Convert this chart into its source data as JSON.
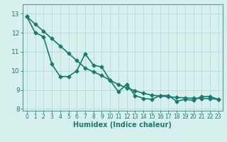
{
  "line1_x": [
    0,
    1,
    2,
    3,
    4,
    5,
    6,
    7,
    8,
    9,
    10,
    11,
    12,
    13,
    14,
    15,
    16,
    17,
    18,
    19,
    20,
    21,
    22,
    23
  ],
  "line1_y": [
    12.85,
    12.0,
    11.8,
    10.35,
    9.7,
    9.7,
    10.0,
    10.9,
    10.3,
    10.2,
    9.5,
    8.9,
    9.3,
    8.7,
    8.55,
    8.5,
    8.7,
    8.7,
    8.4,
    8.5,
    8.45,
    8.65,
    8.65,
    8.5
  ],
  "line2_x": [
    0,
    1,
    2,
    3,
    4,
    5,
    6,
    7,
    8,
    9,
    10,
    11,
    12,
    13,
    14,
    15,
    16,
    17,
    18,
    19,
    20,
    21,
    22,
    23
  ],
  "line2_y": [
    12.85,
    12.46,
    12.08,
    11.69,
    11.31,
    10.92,
    10.54,
    10.15,
    9.95,
    9.75,
    9.5,
    9.28,
    9.1,
    8.95,
    8.82,
    8.72,
    8.68,
    8.64,
    8.6,
    8.58,
    8.56,
    8.55,
    8.54,
    8.5
  ],
  "line_color": "#1a7a6e",
  "bg_color": "#d6f0ee",
  "grid_color": "#b8d8d5",
  "axis_color": "#5a9a90",
  "xlabel": "Humidex (Indice chaleur)",
  "xlim": [
    -0.5,
    23.5
  ],
  "ylim": [
    7.9,
    13.5
  ],
  "yticks": [
    8,
    9,
    10,
    11,
    12,
    13
  ],
  "xticks": [
    0,
    1,
    2,
    3,
    4,
    5,
    6,
    7,
    8,
    9,
    10,
    11,
    12,
    13,
    14,
    15,
    16,
    17,
    18,
    19,
    20,
    21,
    22,
    23
  ],
  "font_color": "#1a7a6e",
  "marker": "D",
  "markersize": 2.5,
  "linewidth": 1.2
}
